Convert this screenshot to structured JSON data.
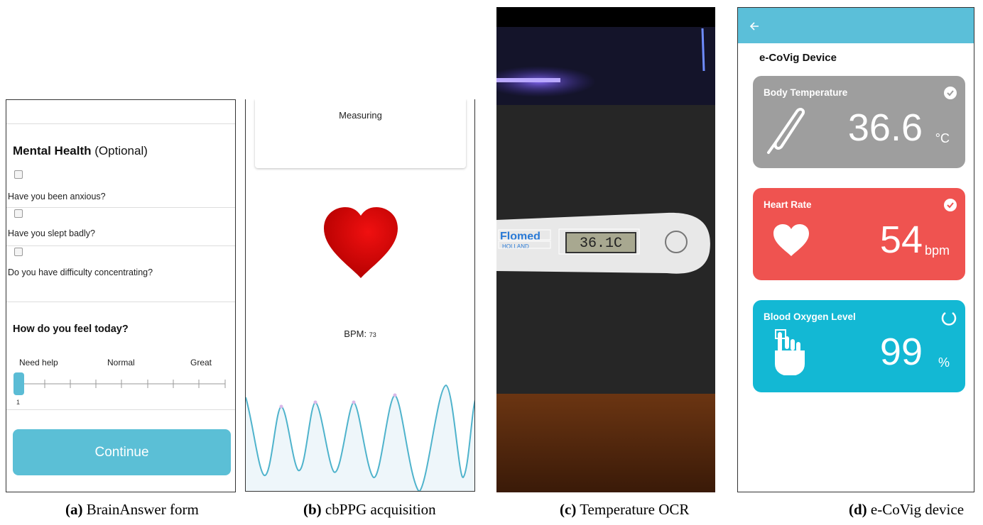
{
  "panels": [
    {
      "caption": {
        "label": "(a)",
        "text": "BrainAnswer form"
      },
      "section_title": "Mental Health",
      "section_note": "(Optional)",
      "questions": [
        "Have you been anxious?",
        "Have you slept badly?",
        "Do you have difficulty concentrating?"
      ],
      "feeling_title": "How do you feel today?",
      "scale_labels": [
        "Need help",
        "Normal",
        "Great"
      ],
      "scale_value": "1",
      "button": "Continue"
    },
    {
      "caption": {
        "label": "(b)",
        "text": "cbPPG acquisition"
      },
      "status": "Measuring",
      "bpm_label": "BPM:",
      "bpm_value": "73"
    },
    {
      "caption": {
        "label": "(c)",
        "text": "Temperature OCR"
      },
      "brand": "Flomed",
      "brand_sub": "HOLLAND",
      "display": "36.1C"
    },
    {
      "caption": {
        "label": "(d)",
        "text": "e-CoVig device"
      },
      "title": "e-CoVig Device",
      "cards": [
        {
          "title": "Body Temperature",
          "value": "36.6",
          "unit": "°C"
        },
        {
          "title": "Heart Rate",
          "value": "54",
          "unit": "bpm"
        },
        {
          "title": "Blood Oxygen Level",
          "value": "99",
          "unit": "%"
        }
      ]
    }
  ]
}
